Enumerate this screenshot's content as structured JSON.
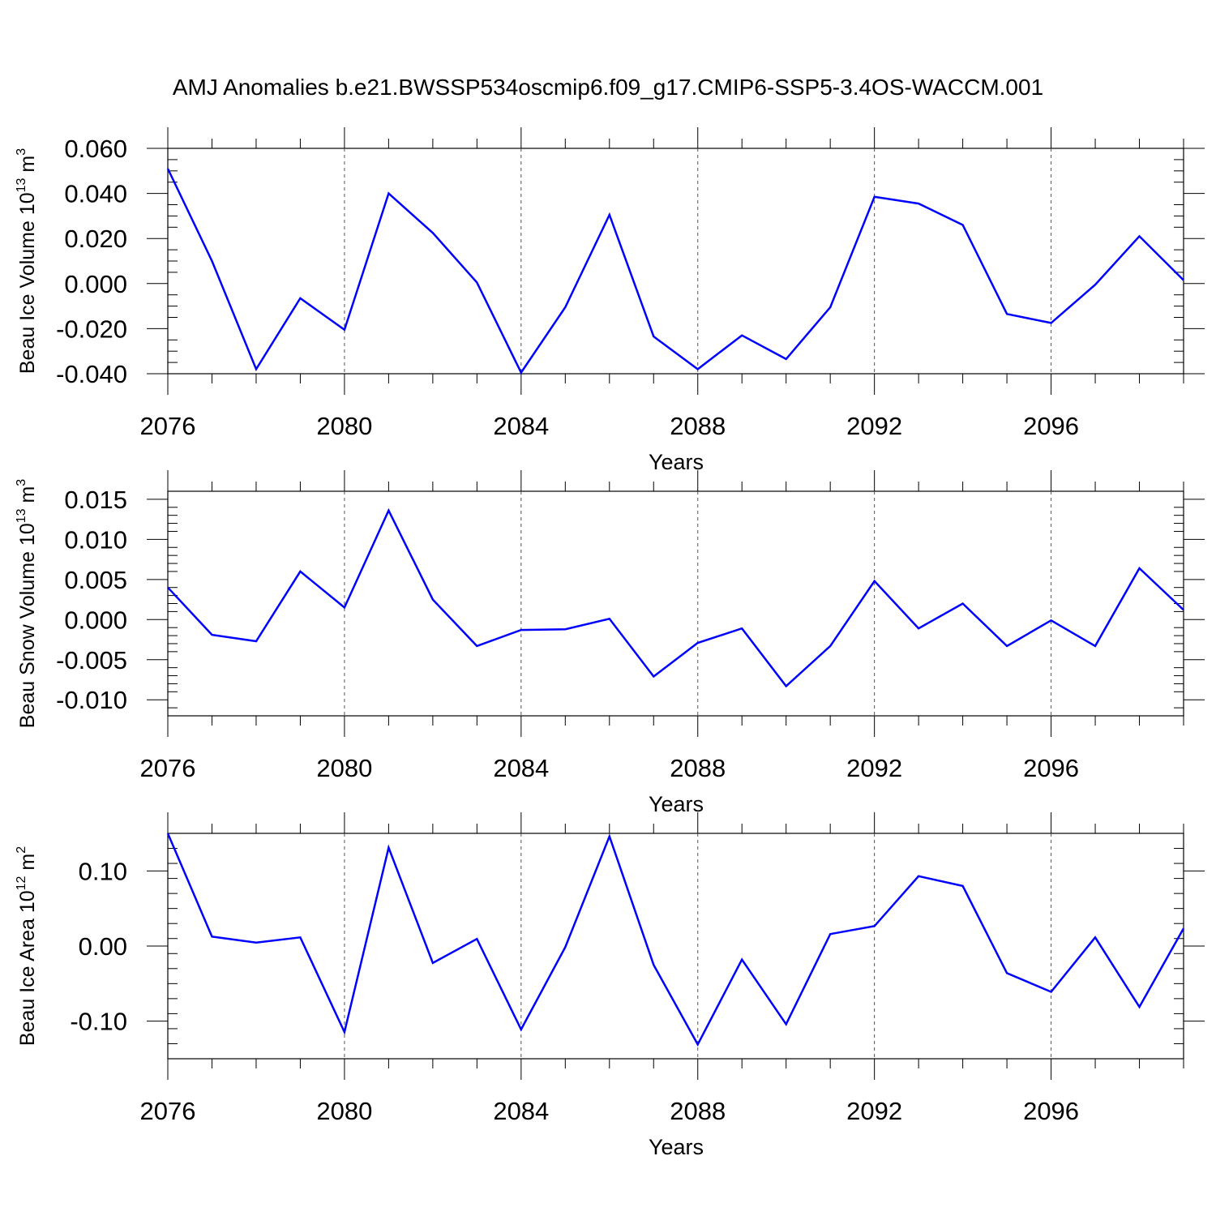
{
  "title": "AMJ Anomalies b.e21.BWSSP534oscmip6.f09_g17.CMIP6-SSP5-3.4OS-WACCM.001",
  "line_color": "#0000ff",
  "chart_data": [
    {
      "type": "line",
      "ylabel": "Beau Ice Volume 10",
      "ylabel_exp": "13",
      "ylabel_unit": "m",
      "ylabel_unit_exp": "3",
      "xlabel": "Years",
      "xlim": [
        2076,
        2099
      ],
      "ylim": [
        -0.04,
        0.06
      ],
      "yticks": [
        -0.04,
        -0.02,
        0.0,
        0.02,
        0.04,
        0.06
      ],
      "ytick_labels": [
        "-0.040",
        "-0.020",
        "0.000",
        "0.020",
        "0.040",
        "0.060"
      ],
      "yminor": 0.005,
      "xticks": [
        2076,
        2080,
        2084,
        2088,
        2092,
        2096
      ],
      "xtick_labels": [
        "2076",
        "2080",
        "2084",
        "2088",
        "2092",
        "2096"
      ],
      "x": [
        2076,
        2077,
        2078,
        2079,
        2080,
        2081,
        2082,
        2083,
        2084,
        2085,
        2086,
        2087,
        2088,
        2089,
        2090,
        2091,
        2092,
        2093,
        2094,
        2095,
        2096,
        2097,
        2098,
        2099
      ],
      "y": [
        0.051,
        0.01,
        -0.038,
        -0.0065,
        -0.0205,
        0.04,
        0.0225,
        0.0005,
        -0.0395,
        -0.0105,
        0.0305,
        -0.0235,
        -0.038,
        -0.023,
        -0.0335,
        -0.0105,
        0.0385,
        0.0355,
        0.026,
        -0.0135,
        -0.0175,
        -0.0005,
        0.021,
        0.0015
      ]
    },
    {
      "type": "line",
      "ylabel": "Beau Snow Volume 10",
      "ylabel_exp": "13",
      "ylabel_unit": "m",
      "ylabel_unit_exp": "3",
      "xlabel": "Years",
      "xlim": [
        2076,
        2099
      ],
      "ylim": [
        -0.012,
        0.016
      ],
      "yticks": [
        -0.01,
        -0.005,
        0.0,
        0.005,
        0.01,
        0.015
      ],
      "ytick_labels": [
        "-0.010",
        "-0.005",
        "0.000",
        "0.005",
        "0.010",
        "0.015"
      ],
      "yminor": 0.001,
      "xticks": [
        2076,
        2080,
        2084,
        2088,
        2092,
        2096
      ],
      "xtick_labels": [
        "2076",
        "2080",
        "2084",
        "2088",
        "2092",
        "2096"
      ],
      "x": [
        2076,
        2077,
        2078,
        2079,
        2080,
        2081,
        2082,
        2083,
        2084,
        2085,
        2086,
        2087,
        2088,
        2089,
        2090,
        2091,
        2092,
        2093,
        2094,
        2095,
        2096,
        2097,
        2098,
        2099
      ],
      "y": [
        0.004,
        -0.0019,
        -0.0027,
        0.006,
        0.0015,
        0.0136,
        0.0025,
        -0.0033,
        -0.0013,
        -0.0012,
        0.0001,
        -0.0071,
        -0.0029,
        -0.0011,
        -0.0083,
        -0.0033,
        0.0048,
        -0.0011,
        0.002,
        -0.0033,
        -0.0001,
        -0.0033,
        0.0064,
        0.0012
      ]
    },
    {
      "type": "line",
      "ylabel": "Beau Ice Area 10",
      "ylabel_exp": "12",
      "ylabel_unit": "m",
      "ylabel_unit_exp": "2",
      "xlabel": "Years",
      "xlim": [
        2076,
        2099
      ],
      "ylim": [
        -0.15,
        0.15
      ],
      "yticks": [
        -0.1,
        0.0,
        0.1
      ],
      "ytick_labels": [
        "-0.10",
        "0.00",
        "0.10"
      ],
      "yminor": 0.02,
      "xticks": [
        2076,
        2080,
        2084,
        2088,
        2092,
        2096
      ],
      "xtick_labels": [
        "2076",
        "2080",
        "2084",
        "2088",
        "2092",
        "2096"
      ],
      "x": [
        2076,
        2077,
        2078,
        2079,
        2080,
        2081,
        2082,
        2083,
        2084,
        2085,
        2086,
        2087,
        2088,
        2089,
        2090,
        2091,
        2092,
        2093,
        2094,
        2095,
        2096,
        2097,
        2098,
        2099
      ],
      "y": [
        0.15,
        0.0125,
        0.0045,
        0.0115,
        -0.1145,
        0.131,
        -0.0225,
        0.0095,
        -0.111,
        -0.0015,
        0.146,
        -0.025,
        -0.131,
        -0.018,
        -0.104,
        0.016,
        0.0265,
        0.093,
        0.08,
        -0.036,
        -0.061,
        0.0115,
        -0.081,
        0.0235
      ]
    }
  ]
}
